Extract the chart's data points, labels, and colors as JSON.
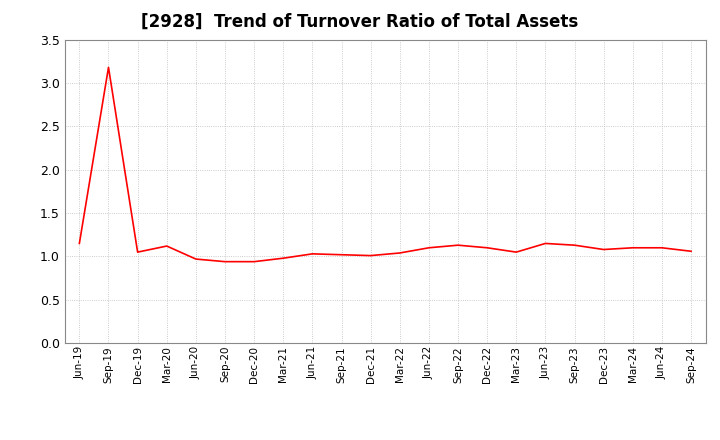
{
  "title": "[2928]  Trend of Turnover Ratio of Total Assets",
  "title_fontsize": 12,
  "title_fontweight": "bold",
  "line_color": "#FF0000",
  "background_color": "#FFFFFF",
  "grid_color": "#BBBBBB",
  "ylim": [
    0.0,
    3.5
  ],
  "yticks": [
    0.0,
    0.5,
    1.0,
    1.5,
    2.0,
    2.5,
    3.0,
    3.5
  ],
  "x_labels": [
    "Jun-19",
    "Sep-19",
    "Dec-19",
    "Mar-20",
    "Jun-20",
    "Sep-20",
    "Dec-20",
    "Mar-21",
    "Jun-21",
    "Sep-21",
    "Dec-21",
    "Mar-22",
    "Jun-22",
    "Sep-22",
    "Dec-22",
    "Mar-23",
    "Jun-23",
    "Sep-23",
    "Dec-23",
    "Mar-24",
    "Jun-24",
    "Sep-24"
  ],
  "y_values": [
    1.15,
    3.18,
    1.05,
    1.12,
    0.97,
    0.94,
    0.94,
    0.98,
    1.03,
    1.02,
    1.01,
    1.04,
    1.1,
    1.13,
    1.1,
    1.05,
    1.15,
    1.13,
    1.08,
    1.1,
    1.1,
    1.06
  ]
}
